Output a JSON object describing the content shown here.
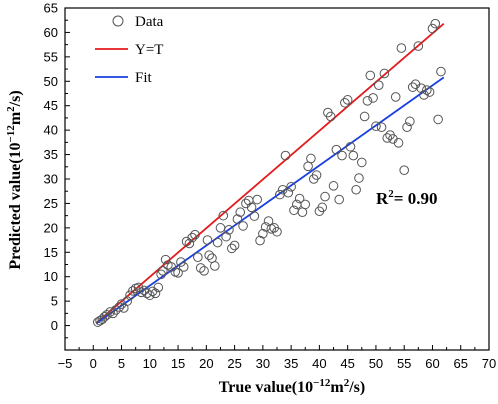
{
  "chart_data": {
    "type": "scatter",
    "xlabel": "True value(10",
    "xlabel_exp": "−12",
    "xlabel_mid": "m",
    "xlabel_exp2": "2",
    "xlabel_tail": "/s)",
    "ylabel": "Predicted value(10",
    "ylabel_exp": "−12",
    "ylabel_mid": "m",
    "ylabel_exp2": "2",
    "ylabel_tail": "/s)",
    "xlim": [
      -5,
      70
    ],
    "ylim": [
      -5,
      65
    ],
    "xticks": [
      -5,
      0,
      5,
      10,
      15,
      20,
      25,
      30,
      35,
      40,
      45,
      50,
      55,
      60,
      65,
      70
    ],
    "yticks": [
      0,
      5,
      10,
      15,
      20,
      25,
      30,
      35,
      40,
      45,
      50,
      55,
      60,
      65
    ],
    "legend_position": "top-left",
    "annotation": {
      "text_main": "R",
      "text_sup": "2",
      "text_tail": "= 0.90",
      "x": 55,
      "y": 21.5
    },
    "series": [
      {
        "name": "Data",
        "kind": "scatter",
        "marker": "open-circle",
        "color": "#555555",
        "points": [
          [
            0.8,
            0.7
          ],
          [
            1.2,
            1.0
          ],
          [
            1.6,
            1.3
          ],
          [
            2.0,
            1.8
          ],
          [
            2.4,
            2.2
          ],
          [
            3.0,
            2.8
          ],
          [
            3.5,
            2.5
          ],
          [
            4.0,
            3.2
          ],
          [
            4.6,
            3.8
          ],
          [
            5.0,
            4.4
          ],
          [
            5.4,
            3.6
          ],
          [
            6.0,
            5.0
          ],
          [
            6.5,
            6.2
          ],
          [
            7.0,
            7.1
          ],
          [
            7.5,
            7.6
          ],
          [
            8.0,
            7.8
          ],
          [
            8.5,
            6.8
          ],
          [
            9.0,
            7.2
          ],
          [
            9.5,
            6.6
          ],
          [
            10.0,
            6.2
          ],
          [
            10.5,
            7.0
          ],
          [
            11.0,
            6.6
          ],
          [
            11.5,
            7.8
          ],
          [
            12.0,
            10.5
          ],
          [
            12.3,
            11.2
          ],
          [
            12.8,
            13.5
          ],
          [
            13.2,
            12.4
          ],
          [
            13.8,
            12.0
          ],
          [
            14.5,
            11.0
          ],
          [
            15.0,
            10.8
          ],
          [
            15.5,
            13.0
          ],
          [
            16.0,
            12.0
          ],
          [
            16.5,
            17.2
          ],
          [
            17.0,
            16.8
          ],
          [
            17.5,
            18.0
          ],
          [
            18.0,
            18.6
          ],
          [
            18.5,
            14.0
          ],
          [
            19.0,
            11.8
          ],
          [
            19.6,
            11.2
          ],
          [
            20.2,
            17.5
          ],
          [
            20.5,
            14.4
          ],
          [
            21.0,
            13.8
          ],
          [
            21.5,
            12.2
          ],
          [
            22.0,
            17.0
          ],
          [
            22.5,
            20.0
          ],
          [
            23.0,
            22.5
          ],
          [
            23.5,
            18.2
          ],
          [
            24.0,
            19.6
          ],
          [
            24.5,
            15.8
          ],
          [
            25.0,
            16.4
          ],
          [
            25.5,
            21.8
          ],
          [
            26.0,
            23.2
          ],
          [
            26.5,
            20.4
          ],
          [
            27.0,
            25.0
          ],
          [
            27.5,
            25.6
          ],
          [
            28.0,
            24.2
          ],
          [
            28.5,
            22.4
          ],
          [
            29.0,
            25.8
          ],
          [
            29.5,
            17.4
          ],
          [
            30.0,
            18.8
          ],
          [
            30.5,
            20.2
          ],
          [
            31.0,
            21.4
          ],
          [
            31.5,
            19.8
          ],
          [
            32.0,
            20.0
          ],
          [
            32.5,
            19.2
          ],
          [
            33.0,
            26.8
          ],
          [
            33.5,
            27.8
          ],
          [
            34.0,
            34.8
          ],
          [
            34.5,
            27.2
          ],
          [
            35.0,
            28.4
          ],
          [
            35.5,
            23.6
          ],
          [
            36.0,
            24.8
          ],
          [
            36.5,
            26.0
          ],
          [
            37.0,
            23.2
          ],
          [
            37.5,
            24.8
          ],
          [
            38.0,
            32.6
          ],
          [
            38.5,
            34.2
          ],
          [
            39.0,
            30.0
          ],
          [
            39.5,
            30.8
          ],
          [
            40.0,
            23.4
          ],
          [
            40.5,
            24.2
          ],
          [
            41.0,
            26.4
          ],
          [
            41.5,
            43.6
          ],
          [
            42.0,
            42.8
          ],
          [
            42.5,
            28.6
          ],
          [
            43.0,
            36.0
          ],
          [
            43.5,
            25.8
          ],
          [
            44.0,
            34.8
          ],
          [
            44.5,
            45.6
          ],
          [
            45.0,
            46.2
          ],
          [
            45.5,
            36.6
          ],
          [
            46.0,
            34.8
          ],
          [
            46.5,
            27.8
          ],
          [
            47.0,
            30.2
          ],
          [
            47.5,
            33.4
          ],
          [
            48.0,
            42.8
          ],
          [
            48.5,
            46.0
          ],
          [
            49.0,
            51.2
          ],
          [
            49.5,
            46.6
          ],
          [
            50.0,
            40.8
          ],
          [
            50.5,
            49.2
          ],
          [
            51.0,
            40.6
          ],
          [
            51.5,
            51.6
          ],
          [
            52.0,
            38.4
          ],
          [
            52.5,
            39.0
          ],
          [
            53.0,
            38.2
          ],
          [
            53.5,
            46.8
          ],
          [
            54.0,
            37.4
          ],
          [
            54.5,
            56.8
          ],
          [
            55.0,
            31.8
          ],
          [
            55.5,
            40.6
          ],
          [
            56.0,
            41.8
          ],
          [
            56.5,
            48.8
          ],
          [
            57.0,
            49.4
          ],
          [
            57.5,
            57.2
          ],
          [
            58.0,
            48.6
          ],
          [
            58.5,
            47.2
          ],
          [
            59.0,
            48.2
          ],
          [
            59.5,
            47.8
          ],
          [
            60.0,
            60.8
          ],
          [
            60.5,
            61.8
          ],
          [
            61.0,
            42.2
          ],
          [
            61.5,
            52.0
          ]
        ]
      },
      {
        "name": "Y=T",
        "kind": "line",
        "color": "#e41a1c",
        "points": [
          [
            0.5,
            0.5
          ],
          [
            62,
            61.8
          ]
        ]
      },
      {
        "name": "Fit",
        "kind": "line",
        "color": "#1a3fe0",
        "points": [
          [
            0.5,
            0.4
          ],
          [
            62,
            50.8
          ]
        ]
      }
    ]
  }
}
